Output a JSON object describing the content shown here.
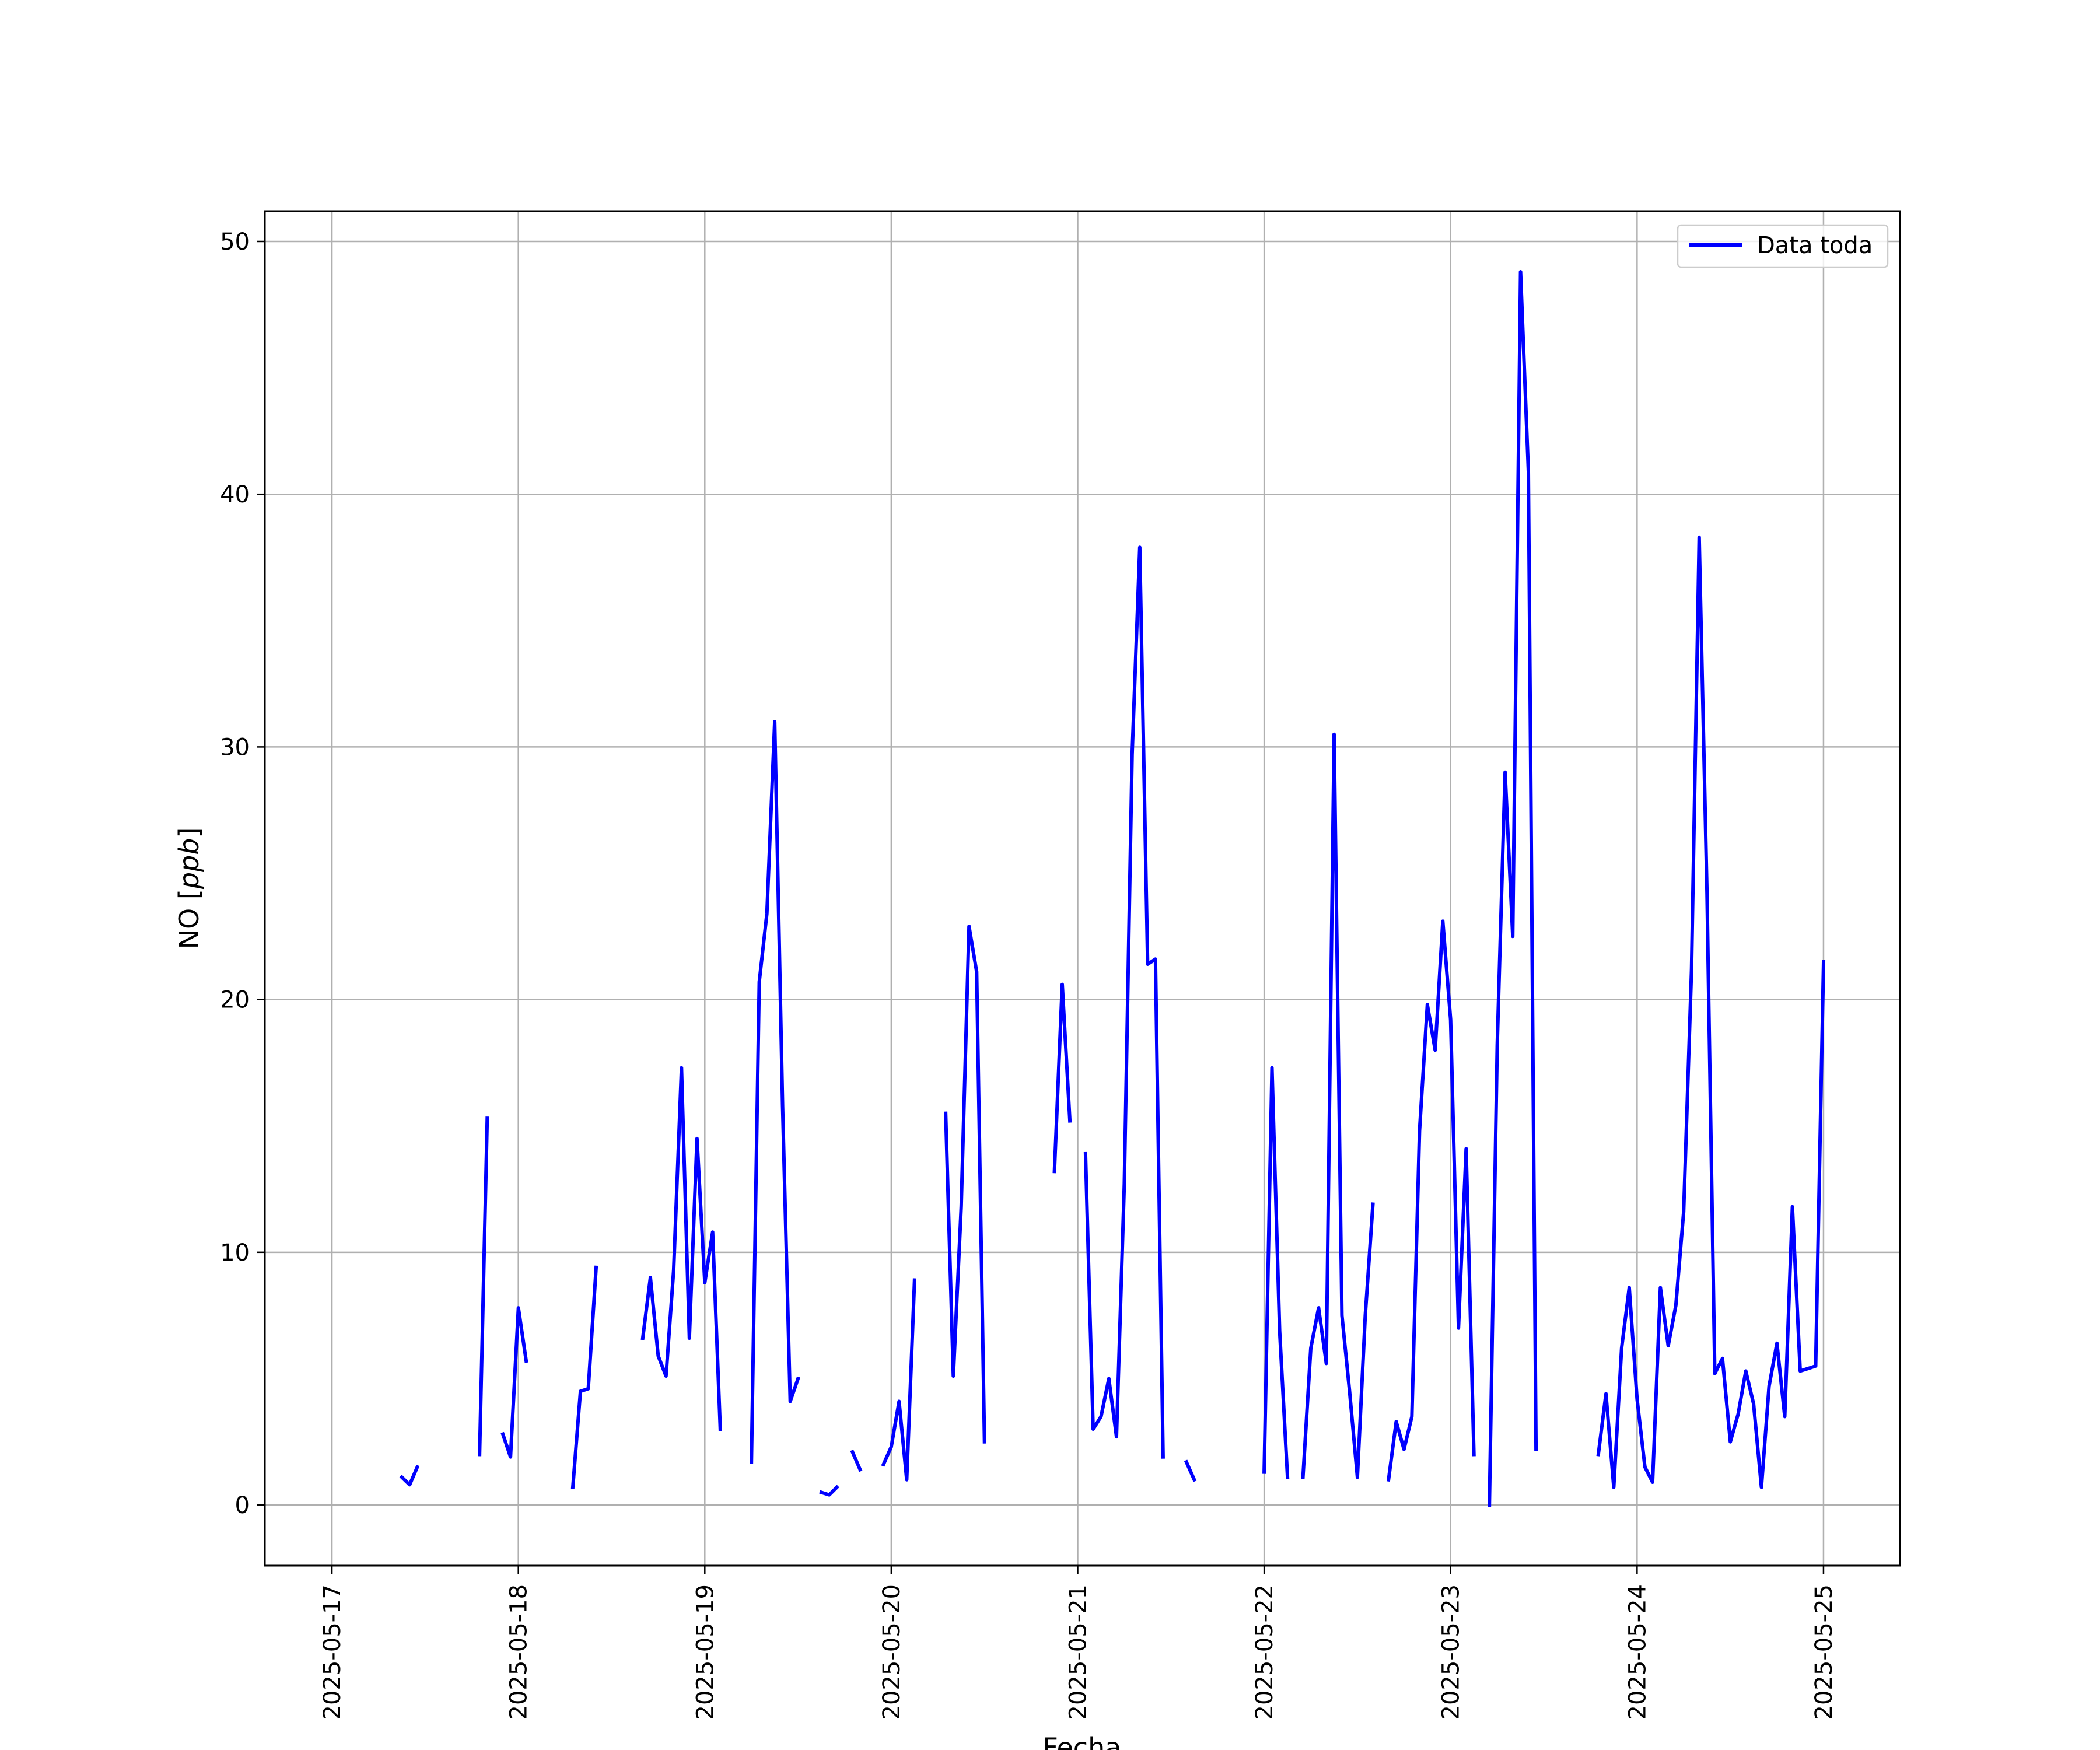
{
  "chart_data": {
    "type": "line",
    "title": "",
    "xlabel": "Fecha",
    "ylabel": "NO [ppb]",
    "ylabel_plain": "NO ",
    "ylabel_italic": "ppb",
    "xlim": [
      -0.36,
      8.41
    ],
    "ylim": [
      -2.4,
      51.2
    ],
    "x_ticks": [
      "2025-05-17",
      "2025-05-18",
      "2025-05-19",
      "2025-05-20",
      "2025-05-21",
      "2025-05-22",
      "2025-05-23",
      "2025-05-24",
      "2025-05-25"
    ],
    "y_ticks": [
      0,
      10,
      20,
      30,
      40,
      50
    ],
    "grid": true,
    "legend_position": "top-right",
    "series": [
      {
        "name": "Data toda",
        "color": "#0000ff",
        "points": [
          [
            0.375,
            1.1
          ],
          [
            0.417,
            0.8
          ],
          [
            0.458,
            1.5
          ],
          [
            0.5,
            null
          ],
          [
            0.792,
            2.0
          ],
          [
            0.833,
            15.3
          ],
          [
            0.875,
            null
          ],
          [
            0.917,
            2.8
          ],
          [
            0.958,
            1.9
          ],
          [
            1.0,
            7.8
          ],
          [
            1.042,
            5.7
          ],
          [
            1.083,
            null
          ],
          [
            1.292,
            0.7
          ],
          [
            1.333,
            4.5
          ],
          [
            1.375,
            4.6
          ],
          [
            1.417,
            9.4
          ],
          [
            1.458,
            null
          ],
          [
            1.667,
            6.6
          ],
          [
            1.708,
            9.0
          ],
          [
            1.75,
            5.9
          ],
          [
            1.792,
            5.1
          ],
          [
            1.833,
            9.3
          ],
          [
            1.875,
            17.3
          ],
          [
            1.917,
            6.6
          ],
          [
            1.958,
            14.5
          ],
          [
            2.0,
            8.8
          ],
          [
            2.042,
            10.8
          ],
          [
            2.083,
            3.0
          ],
          [
            2.125,
            null
          ],
          [
            2.25,
            1.7
          ],
          [
            2.292,
            20.7
          ],
          [
            2.333,
            23.4
          ],
          [
            2.375,
            31.0
          ],
          [
            2.417,
            15.8
          ],
          [
            2.458,
            4.1
          ],
          [
            2.5,
            5.0
          ],
          [
            2.542,
            null
          ],
          [
            2.625,
            0.5
          ],
          [
            2.667,
            0.4
          ],
          [
            2.708,
            0.7
          ],
          [
            2.75,
            null
          ],
          [
            2.792,
            2.1
          ],
          [
            2.833,
            1.4
          ],
          [
            2.875,
            null
          ],
          [
            2.958,
            1.6
          ],
          [
            3.0,
            2.3
          ],
          [
            3.042,
            4.1
          ],
          [
            3.083,
            1.0
          ],
          [
            3.125,
            8.9
          ],
          [
            3.167,
            null
          ],
          [
            3.292,
            15.5
          ],
          [
            3.333,
            5.1
          ],
          [
            3.375,
            11.8
          ],
          [
            3.417,
            22.9
          ],
          [
            3.458,
            21.1
          ],
          [
            3.5,
            2.5
          ],
          [
            3.542,
            null
          ],
          [
            3.875,
            13.2
          ],
          [
            3.917,
            20.6
          ],
          [
            3.958,
            15.2
          ],
          [
            4.0,
            null
          ],
          [
            4.042,
            13.9
          ],
          [
            4.083,
            3.0
          ],
          [
            4.125,
            3.5
          ],
          [
            4.167,
            5.0
          ],
          [
            4.208,
            2.7
          ],
          [
            4.25,
            12.7
          ],
          [
            4.292,
            29.7
          ],
          [
            4.333,
            37.9
          ],
          [
            4.375,
            21.4
          ],
          [
            4.417,
            21.6
          ],
          [
            4.458,
            1.9
          ],
          [
            4.5,
            null
          ],
          [
            4.583,
            1.7
          ],
          [
            4.625,
            1.0
          ],
          [
            4.667,
            null
          ],
          [
            5.0,
            1.3
          ],
          [
            5.042,
            17.3
          ],
          [
            5.083,
            6.9
          ],
          [
            5.125,
            1.1
          ],
          [
            5.167,
            null
          ],
          [
            5.208,
            1.1
          ],
          [
            5.25,
            6.2
          ],
          [
            5.292,
            7.8
          ],
          [
            5.333,
            5.6
          ],
          [
            5.375,
            30.5
          ],
          [
            5.417,
            7.5
          ],
          [
            5.458,
            4.5
          ],
          [
            5.5,
            1.1
          ],
          [
            5.542,
            7.5
          ],
          [
            5.583,
            11.9
          ],
          [
            5.625,
            null
          ],
          [
            5.667,
            1.0
          ],
          [
            5.708,
            3.3
          ],
          [
            5.75,
            2.2
          ],
          [
            5.792,
            3.5
          ],
          [
            5.833,
            14.8
          ],
          [
            5.875,
            19.8
          ],
          [
            5.917,
            18.0
          ],
          [
            5.958,
            23.1
          ],
          [
            6.0,
            19.2
          ],
          [
            6.042,
            7.0
          ],
          [
            6.083,
            14.1
          ],
          [
            6.125,
            2.0
          ],
          [
            6.167,
            null
          ],
          [
            6.208,
            0.0
          ],
          [
            6.25,
            18.2
          ],
          [
            6.292,
            29.0
          ],
          [
            6.333,
            22.5
          ],
          [
            6.375,
            48.8
          ],
          [
            6.417,
            40.9
          ],
          [
            6.458,
            2.2
          ],
          [
            6.5,
            null
          ],
          [
            6.792,
            2.0
          ],
          [
            6.833,
            4.4
          ],
          [
            6.875,
            0.7
          ],
          [
            6.917,
            6.2
          ],
          [
            6.958,
            8.6
          ],
          [
            7.0,
            4.2
          ],
          [
            7.042,
            1.5
          ],
          [
            7.083,
            0.9
          ],
          [
            7.125,
            8.6
          ],
          [
            7.167,
            6.3
          ],
          [
            7.208,
            7.9
          ],
          [
            7.25,
            11.6
          ],
          [
            7.292,
            21.2
          ],
          [
            7.333,
            38.3
          ],
          [
            7.375,
            24.2
          ],
          [
            7.417,
            5.2
          ],
          [
            7.458,
            5.8
          ],
          [
            7.5,
            2.5
          ],
          [
            7.542,
            3.6
          ],
          [
            7.583,
            5.3
          ],
          [
            7.625,
            4.0
          ],
          [
            7.667,
            0.7
          ],
          [
            7.708,
            4.7
          ],
          [
            7.75,
            6.4
          ],
          [
            7.792,
            3.5
          ],
          [
            7.833,
            11.8
          ],
          [
            7.875,
            5.3
          ],
          [
            7.917,
            5.4
          ],
          [
            7.958,
            5.5
          ],
          [
            8.0,
            21.5
          ]
        ]
      }
    ]
  }
}
